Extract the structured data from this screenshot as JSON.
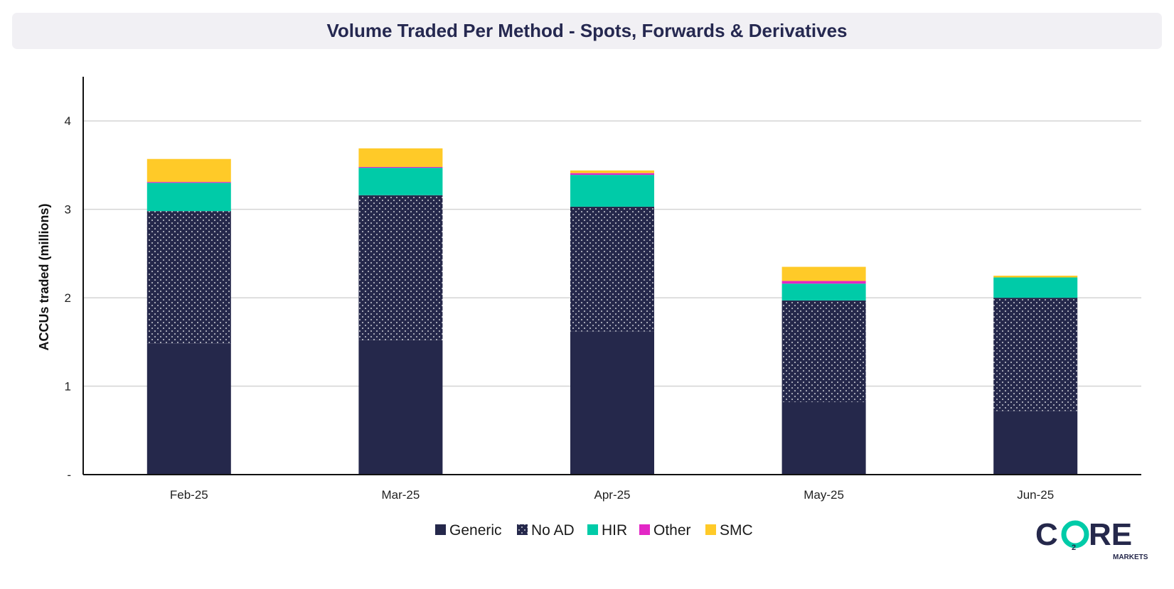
{
  "title": "Volume Traded Per Method - Spots, Forwards & Derivatives",
  "logo": {
    "text_main": "CORE",
    "text_sub": "MARKETS",
    "subscript": "2"
  },
  "colors": {
    "Generic": "#25284b",
    "No AD": "#25284b",
    "HIR": "#00cba8",
    "Other": "#e327c6",
    "SMC": "#ffca28",
    "title_bg": "#f1f0f4",
    "title_text": "#252850"
  },
  "chart_data": {
    "type": "bar",
    "stacked": true,
    "categories": [
      "Feb-25",
      "Mar-25",
      "Apr-25",
      "May-25",
      "Jun-25"
    ],
    "ylabel": "ACCUs traded (millions)",
    "xlabel": "",
    "ylim": [
      0,
      4.5
    ],
    "yticks": [
      {
        "value": 0,
        "label": "-"
      },
      {
        "value": 1,
        "label": "1"
      },
      {
        "value": 2,
        "label": "2"
      },
      {
        "value": 3,
        "label": "3"
      },
      {
        "value": 4,
        "label": "4"
      }
    ],
    "grid": true,
    "legend_position": "bottom",
    "series": [
      {
        "name": "Generic",
        "values": [
          1.48,
          1.52,
          1.62,
          0.82,
          0.72
        ],
        "pattern": "solid"
      },
      {
        "name": "No AD",
        "values": [
          1.5,
          1.64,
          1.41,
          1.15,
          1.28
        ],
        "pattern": "dots"
      },
      {
        "name": "HIR",
        "values": [
          0.32,
          0.31,
          0.36,
          0.19,
          0.23
        ],
        "pattern": "solid"
      },
      {
        "name": "Other",
        "values": [
          0.01,
          0.01,
          0.02,
          0.03,
          0.0
        ],
        "pattern": "solid"
      },
      {
        "name": "SMC",
        "values": [
          0.26,
          0.21,
          0.03,
          0.16,
          0.02
        ],
        "pattern": "solid"
      }
    ]
  }
}
